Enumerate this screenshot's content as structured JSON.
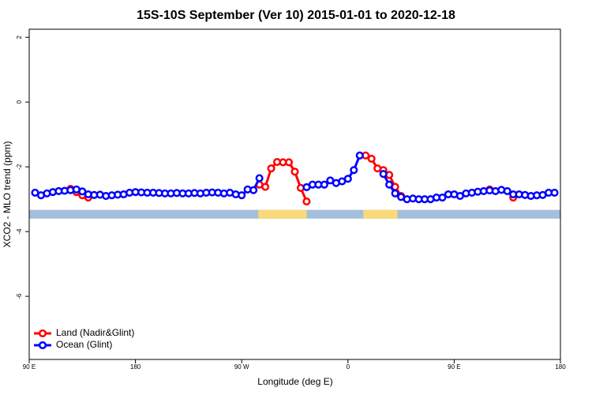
{
  "chart_data": {
    "type": "line",
    "title": "15S-10S September (Ver 10)   2015-01-01 to 2020-12-18",
    "x_label": "Longitude (deg E)",
    "y_label": "XCO2 - MLO trend (ppm)",
    "xlim": [
      90,
      540
    ],
    "ylim": [
      -7.95,
      2.25
    ],
    "xticks": [
      {
        "value": 90,
        "label": "90 E"
      },
      180,
      {
        "value": 270,
        "label": "90 W"
      },
      {
        "value": 360,
        "label": "0"
      },
      {
        "value": 450,
        "label": "90 E"
      },
      {
        "value": 540,
        "label": "180"
      }
    ],
    "yticks": [
      2,
      0,
      -2,
      -4,
      -6
    ],
    "legend": "bottom-left",
    "mask_band": {
      "y": [
        -3.6,
        -3.33
      ],
      "ocean_color": "#a4bede",
      "land_color": "#f9d97a",
      "land": [
        [
          284,
          325
        ],
        [
          373,
          402
        ]
      ]
    },
    "series": [
      {
        "name": "Land (Nadir&Glint)",
        "color": "#ff0000",
        "x": [
          125,
          130,
          135,
          140,
          145,
          285,
          290,
          295,
          300,
          305,
          310,
          315,
          320,
          325,
          330,
          375,
          380,
          385,
          390,
          395,
          400,
          405,
          410,
          480,
          485,
          500
        ],
        "values": [
          -2.68,
          -2.78,
          -2.88,
          -2.95,
          null,
          -2.55,
          -2.62,
          -2.05,
          -1.85,
          -1.86,
          -1.86,
          -2.15,
          -2.65,
          -3.07,
          null,
          -1.65,
          -1.75,
          -2.05,
          -2.1,
          -2.25,
          -2.62,
          -2.9,
          null,
          -2.7,
          null,
          -2.95
        ]
      },
      {
        "name": "Ocean (Glint)",
        "color": "#0000ff",
        "x": [
          95,
          100,
          105,
          110,
          115,
          120,
          125,
          130,
          135,
          140,
          145,
          150,
          155,
          160,
          165,
          170,
          175,
          180,
          185,
          190,
          195,
          200,
          205,
          210,
          215,
          220,
          225,
          230,
          235,
          240,
          245,
          250,
          255,
          260,
          265,
          270,
          275,
          280,
          285,
          290,
          325,
          330,
          335,
          340,
          345,
          350,
          355,
          360,
          365,
          370,
          375,
          390,
          395,
          400,
          405,
          410,
          415,
          420,
          425,
          430,
          435,
          440,
          445,
          450,
          455,
          460,
          465,
          470,
          475,
          480,
          485,
          490,
          495,
          500,
          505,
          510,
          515,
          520,
          525,
          530,
          535
        ],
        "values": [
          -2.8,
          -2.88,
          -2.82,
          -2.78,
          -2.75,
          -2.74,
          -2.72,
          -2.7,
          -2.76,
          -2.85,
          -2.87,
          -2.86,
          -2.9,
          -2.88,
          -2.86,
          -2.85,
          -2.8,
          -2.78,
          -2.79,
          -2.8,
          -2.8,
          -2.81,
          -2.82,
          -2.82,
          -2.81,
          -2.82,
          -2.82,
          -2.81,
          -2.82,
          -2.8,
          -2.79,
          -2.8,
          -2.82,
          -2.8,
          -2.85,
          -2.88,
          -2.7,
          -2.72,
          -2.35,
          null,
          -2.63,
          -2.55,
          -2.55,
          -2.55,
          -2.42,
          -2.5,
          -2.45,
          -2.37,
          -2.1,
          -1.65,
          null,
          -2.22,
          -2.55,
          -2.82,
          -2.93,
          -3.0,
          -2.98,
          -3.0,
          -3.0,
          -3.0,
          -2.95,
          -2.95,
          -2.85,
          -2.85,
          -2.9,
          -2.82,
          -2.8,
          -2.77,
          -2.75,
          -2.73,
          -2.75,
          -2.71,
          -2.75,
          -2.85,
          -2.85,
          -2.87,
          -2.9,
          -2.88,
          -2.87,
          -2.8,
          -2.8
        ]
      }
    ]
  }
}
